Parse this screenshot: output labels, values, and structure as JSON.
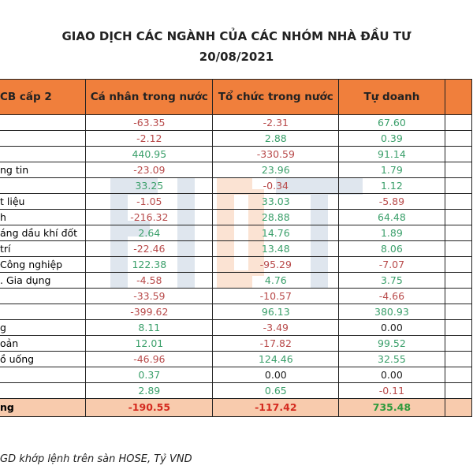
{
  "title": "GIAO DỊCH CÁC NGÀNH CỦA CÁC NHÓM NHÀ ĐẦU TƯ",
  "date": "20/08/2021",
  "watermark": "FIDT",
  "colors": {
    "header": "#f07f3c",
    "total_row": "#f8cbad",
    "positive": "#3a9f6a",
    "negative": "#b84a4a"
  },
  "columns": [
    "CB cấp 2",
    "Cá nhân trong nước",
    "Tổ chức trong nước",
    "Tự doanh",
    ""
  ],
  "rows": [
    {
      "name": "",
      "values": [
        "-63.35",
        "-2.31",
        "67.60"
      ]
    },
    {
      "name": "",
      "values": [
        "-2.12",
        "2.88",
        "0.39"
      ]
    },
    {
      "name": "",
      "values": [
        "440.95",
        "-330.59",
        "91.14"
      ]
    },
    {
      "name": "ng tin",
      "values": [
        "-23.09",
        "23.96",
        "1.79"
      ]
    },
    {
      "name": "",
      "values": [
        "33.25",
        "-0.34",
        "1.12"
      ]
    },
    {
      "name": "t liệu",
      "values": [
        "-1.05",
        "33.03",
        "-5.89"
      ]
    },
    {
      "name": "h",
      "values": [
        "-216.32",
        "28.88",
        "64.48"
      ]
    },
    {
      "name": "áng dầu khí đốt",
      "values": [
        "2.64",
        "14.76",
        "1.89"
      ]
    },
    {
      "name": "trí",
      "values": [
        "-22.46",
        "13.48",
        "8.06"
      ]
    },
    {
      "name": " Công nghiệp",
      "values": [
        "122.38",
        "-95.29",
        "-7.07"
      ]
    },
    {
      "name": ". Gia dụng",
      "values": [
        "-4.58",
        "4.76",
        "3.75"
      ]
    },
    {
      "name": "",
      "values": [
        "-33.59",
        "-10.57",
        "-4.66"
      ]
    },
    {
      "name": "",
      "values": [
        "-399.62",
        "96.13",
        "380.93"
      ]
    },
    {
      "name": "g",
      "values": [
        "8.11",
        "-3.49",
        "0.00"
      ]
    },
    {
      "name": "oản",
      "values": [
        "12.01",
        "-17.82",
        "99.52"
      ]
    },
    {
      "name": "ồ uống",
      "values": [
        "-46.96",
        "124.46",
        "32.55"
      ]
    },
    {
      "name": "",
      "values": [
        "0.37",
        "0.00",
        "0.00"
      ]
    },
    {
      "name": "",
      "values": [
        "2.89",
        "0.65",
        "-0.11"
      ]
    }
  ],
  "total": {
    "name": "ng",
    "values": [
      "-190.55",
      "-117.42",
      "735.48"
    ]
  },
  "caption": "GD khớp lệnh trên sàn HOSE, Tỷ VND"
}
